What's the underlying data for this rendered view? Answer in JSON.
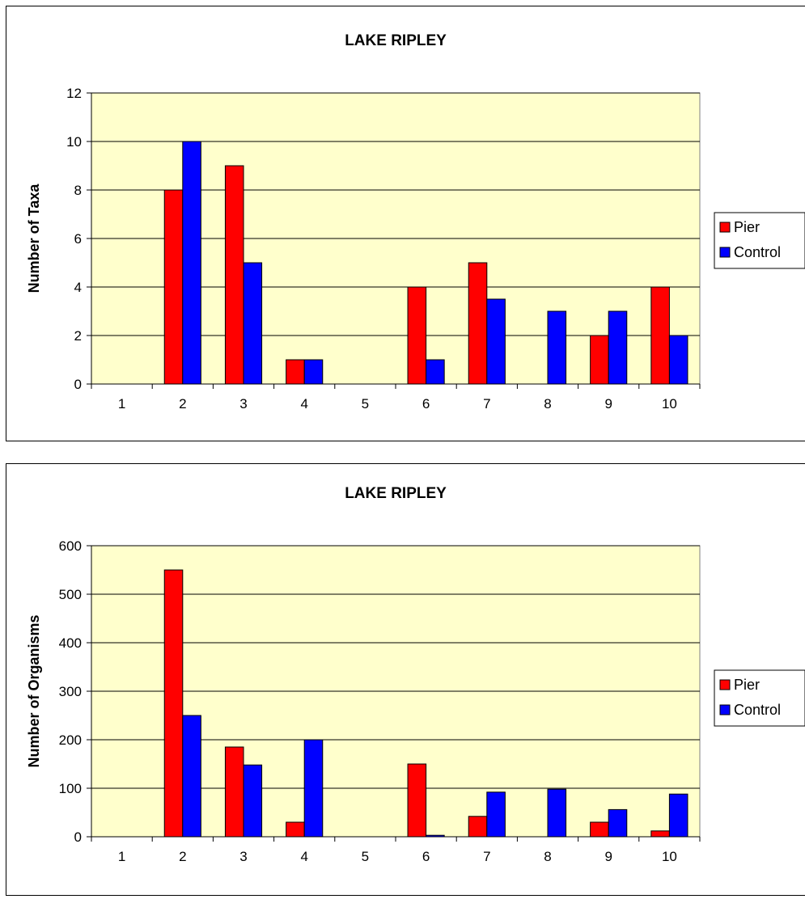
{
  "chart_data": [
    {
      "type": "bar",
      "title": "LAKE RIPLEY",
      "xlabel": "",
      "ylabel": "Number of Taxa",
      "categories": [
        "1",
        "2",
        "3",
        "4",
        "5",
        "6",
        "7",
        "8",
        "9",
        "10"
      ],
      "series": [
        {
          "name": "Pier",
          "color": "#ff0000",
          "values": [
            0,
            8,
            9,
            1,
            0,
            4,
            5,
            0,
            2,
            4
          ]
        },
        {
          "name": "Control",
          "color": "#0000ff",
          "values": [
            0,
            10,
            5,
            1,
            0,
            1,
            3.5,
            3,
            3,
            2
          ]
        }
      ],
      "ylim": [
        0,
        12
      ],
      "yticks": [
        "0",
        "2",
        "4",
        "6",
        "8",
        "10",
        "12"
      ],
      "grid": true,
      "legend_position": "right",
      "plot_background": "#ffffcc"
    },
    {
      "type": "bar",
      "title": "LAKE RIPLEY",
      "xlabel": "",
      "ylabel": "Number of Organisms",
      "categories": [
        "1",
        "2",
        "3",
        "4",
        "5",
        "6",
        "7",
        "8",
        "9",
        "10"
      ],
      "series": [
        {
          "name": "Pier",
          "color": "#ff0000",
          "values": [
            0,
            550,
            185,
            30,
            0,
            150,
            42,
            0,
            30,
            12
          ]
        },
        {
          "name": "Control",
          "color": "#0000ff",
          "values": [
            0,
            250,
            148,
            200,
            0,
            3,
            92,
            98,
            56,
            88
          ]
        }
      ],
      "ylim": [
        0,
        600
      ],
      "yticks": [
        "0",
        "100",
        "200",
        "300",
        "400",
        "500",
        "600"
      ],
      "grid": true,
      "legend_position": "right",
      "plot_background": "#ffffcc"
    }
  ]
}
